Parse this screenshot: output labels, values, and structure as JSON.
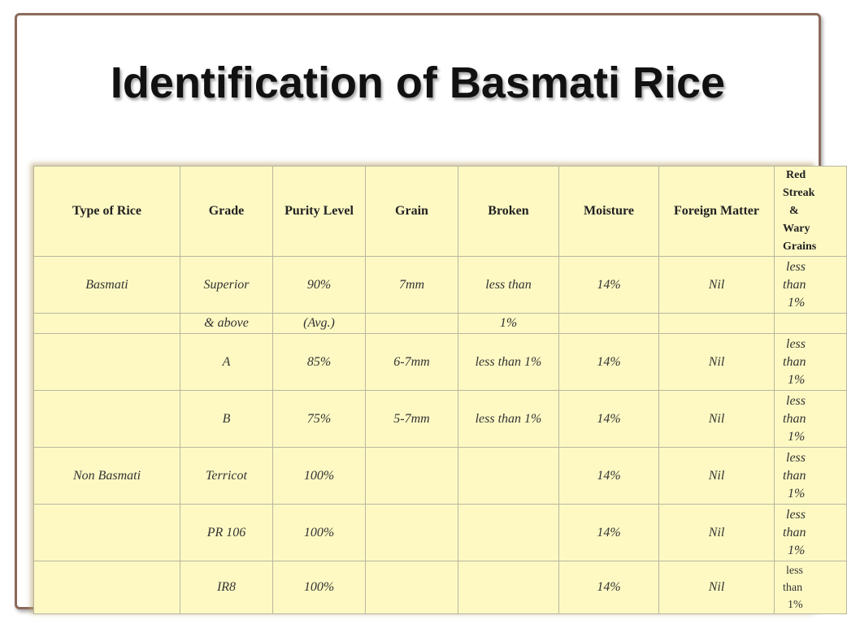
{
  "slide": {
    "title": "Identification of Basmati Rice"
  },
  "table": {
    "headers": [
      "Type of Rice",
      "Grade",
      "Purity Level",
      "Grain",
      "Broken",
      "Moisture",
      "Foreign Matter",
      "Red Streak & Wary Grains"
    ],
    "header_last_lines": [
      "Red",
      "Streak",
      "&",
      "Wary",
      "Grains"
    ],
    "rows": [
      {
        "type": "Basmati",
        "grade": "Superior",
        "purity": "90%",
        "grain": "7mm",
        "broken": "less than",
        "moisture": "14%",
        "foreign": "Nil",
        "red_lines": [
          "less",
          "than",
          "1%"
        ]
      },
      {
        "type": "",
        "grade": "& above",
        "purity": "(Avg.)",
        "grain": "",
        "broken": "1%",
        "moisture": "",
        "foreign": "",
        "red_lines": []
      },
      {
        "type": "",
        "grade": "A",
        "purity": "85%",
        "grain": "6-7mm",
        "broken": "less than 1%",
        "moisture": "14%",
        "foreign": "Nil",
        "red_lines": [
          "less",
          "than",
          "1%"
        ]
      },
      {
        "type": "",
        "grade": "B",
        "purity": "75%",
        "grain": "5-7mm",
        "broken": "less than 1%",
        "moisture": "14%",
        "foreign": "Nil",
        "red_lines": [
          "less",
          "than",
          "1%"
        ]
      },
      {
        "type": "Non Basmati",
        "grade": "Terricot",
        "purity": "100%",
        "grain": "",
        "broken": "",
        "moisture": "14%",
        "foreign": "Nil",
        "red_lines": [
          "less",
          "than",
          "1%"
        ]
      },
      {
        "type": "",
        "grade": "PR 106",
        "purity": "100%",
        "grain": "",
        "broken": "",
        "moisture": "14%",
        "foreign": "Nil",
        "red_lines": [
          "less",
          "than",
          "1%"
        ]
      },
      {
        "type": "",
        "grade": "IR8",
        "purity": "100%",
        "grain": "",
        "broken": "",
        "moisture": "14%",
        "foreign": "Nil",
        "red_lines": [
          "less",
          "than",
          "1%"
        ]
      }
    ]
  },
  "colors": {
    "table_bg": "#fef9c3",
    "border": "#b9b6a0",
    "frame": "#8b6a5a"
  }
}
